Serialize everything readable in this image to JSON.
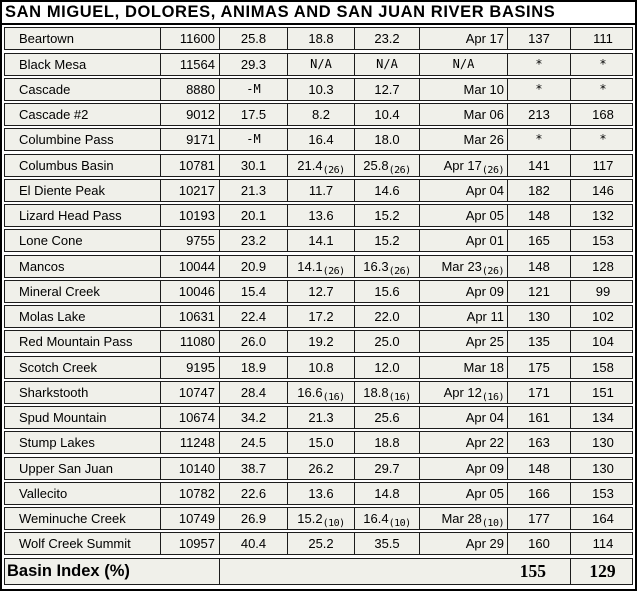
{
  "title": "SAN MIGUEL, DOLORES, ANIMAS AND SAN JUAN RIVER BASINS",
  "colors": {
    "row_background": "#f0f0ea",
    "border": "#000000",
    "text": "#000000"
  },
  "table": {
    "rows": [
      {
        "station": "Beartown",
        "elevation": "11600",
        "swe": "25.8",
        "avg": "18.8",
        "med": "23.2",
        "peak_date": "Apr 17",
        "pct_avg": "137",
        "pct_med": "111"
      },
      {
        "station": "Black Mesa",
        "elevation": "11564",
        "swe": "29.3",
        "avg": "N/A",
        "med": "N/A",
        "peak_date": "N/A",
        "pct_avg": "*",
        "pct_med": "*"
      },
      {
        "station": "Cascade",
        "elevation": "8880",
        "swe": "-M",
        "avg": "10.3",
        "med": "12.7",
        "peak_date": "Mar 10",
        "pct_avg": "*",
        "pct_med": "*"
      },
      {
        "station": "Cascade #2",
        "elevation": "9012",
        "swe": "17.5",
        "avg": "8.2",
        "med": "10.4",
        "peak_date": "Mar 06",
        "pct_avg": "213",
        "pct_med": "168"
      },
      {
        "station": "Columbine Pass",
        "elevation": "9171",
        "swe": "-M",
        "avg": "16.4",
        "med": "18.0",
        "peak_date": "Mar 26",
        "pct_avg": "*",
        "pct_med": "*"
      },
      {
        "station": "Columbus Basin",
        "elevation": "10781",
        "swe": "30.1",
        "avg": "21.4",
        "med": "25.8",
        "peak_date": "Apr 17",
        "pct_avg": "141",
        "pct_med": "117",
        "footnote": "(26)"
      },
      {
        "station": "El Diente Peak",
        "elevation": "10217",
        "swe": "21.3",
        "avg": "11.7",
        "med": "14.6",
        "peak_date": "Apr 04",
        "pct_avg": "182",
        "pct_med": "146"
      },
      {
        "station": "Lizard Head Pass",
        "elevation": "10193",
        "swe": "20.1",
        "avg": "13.6",
        "med": "15.2",
        "peak_date": "Apr 05",
        "pct_avg": "148",
        "pct_med": "132"
      },
      {
        "station": "Lone Cone",
        "elevation": "9755",
        "swe": "23.2",
        "avg": "14.1",
        "med": "15.2",
        "peak_date": "Apr 01",
        "pct_avg": "165",
        "pct_med": "153"
      },
      {
        "station": "Mancos",
        "elevation": "10044",
        "swe": "20.9",
        "avg": "14.1",
        "med": "16.3",
        "peak_date": "Mar 23",
        "pct_avg": "148",
        "pct_med": "128",
        "footnote": "(26)"
      },
      {
        "station": "Mineral Creek",
        "elevation": "10046",
        "swe": "15.4",
        "avg": "12.7",
        "med": "15.6",
        "peak_date": "Apr 09",
        "pct_avg": "121",
        "pct_med": "99"
      },
      {
        "station": "Molas Lake",
        "elevation": "10631",
        "swe": "22.4",
        "avg": "17.2",
        "med": "22.0",
        "peak_date": "Apr 11",
        "pct_avg": "130",
        "pct_med": "102"
      },
      {
        "station": "Red Mountain Pass",
        "elevation": "11080",
        "swe": "26.0",
        "avg": "19.2",
        "med": "25.0",
        "peak_date": "Apr 25",
        "pct_avg": "135",
        "pct_med": "104"
      },
      {
        "station": "Scotch Creek",
        "elevation": "9195",
        "swe": "18.9",
        "avg": "10.8",
        "med": "12.0",
        "peak_date": "Mar 18",
        "pct_avg": "175",
        "pct_med": "158"
      },
      {
        "station": "Sharkstooth",
        "elevation": "10747",
        "swe": "28.4",
        "avg": "16.6",
        "med": "18.8",
        "peak_date": "Apr 12",
        "pct_avg": "171",
        "pct_med": "151",
        "footnote": "(16)"
      },
      {
        "station": "Spud Mountain",
        "elevation": "10674",
        "swe": "34.2",
        "avg": "21.3",
        "med": "25.6",
        "peak_date": "Apr 04",
        "pct_avg": "161",
        "pct_med": "134"
      },
      {
        "station": "Stump Lakes",
        "elevation": "11248",
        "swe": "24.5",
        "avg": "15.0",
        "med": "18.8",
        "peak_date": "Apr 22",
        "pct_avg": "163",
        "pct_med": "130"
      },
      {
        "station": "Upper San Juan",
        "elevation": "10140",
        "swe": "38.7",
        "avg": "26.2",
        "med": "29.7",
        "peak_date": "Apr 09",
        "pct_avg": "148",
        "pct_med": "130"
      },
      {
        "station": "Vallecito",
        "elevation": "10782",
        "swe": "22.6",
        "avg": "13.6",
        "med": "14.8",
        "peak_date": "Apr 05",
        "pct_avg": "166",
        "pct_med": "153"
      },
      {
        "station": "Weminuche Creek",
        "elevation": "10749",
        "swe": "26.9",
        "avg": "15.2",
        "med": "16.4",
        "peak_date": "Mar 28",
        "pct_avg": "177",
        "pct_med": "164",
        "footnote": "(10)"
      },
      {
        "station": "Wolf Creek Summit",
        "elevation": "10957",
        "swe": "40.4",
        "avg": "25.2",
        "med": "35.5",
        "peak_date": "Apr 29",
        "pct_avg": "160",
        "pct_med": "114"
      }
    ],
    "footer": {
      "label": "Basin Index (%)",
      "pct_average": "155",
      "pct_median": "129"
    }
  }
}
